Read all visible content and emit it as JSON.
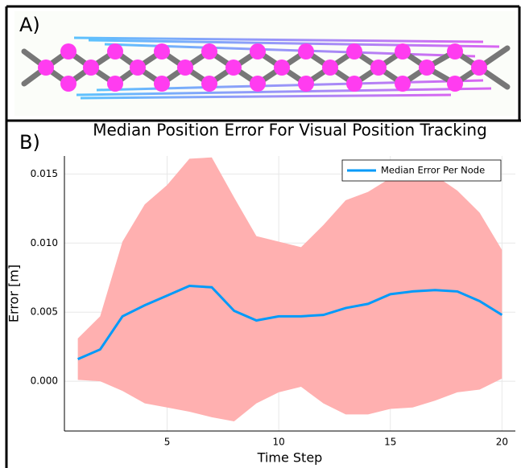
{
  "panels": {
    "a": "A)",
    "b": "B)"
  },
  "chart_data": {
    "type": "line",
    "title": "Median Position Error For Visual Position Tracking",
    "x_label": "Time Step",
    "y_label": "Error [m]",
    "x": [
      1,
      2,
      3,
      4,
      5,
      6,
      7,
      8,
      9,
      10,
      11,
      12,
      13,
      14,
      15,
      16,
      17,
      18,
      19,
      20
    ],
    "series": [
      {
        "name": "Median Error Per Node",
        "color": "#009af9",
        "values": [
          0.0016,
          0.0023,
          0.0047,
          0.0055,
          0.0062,
          0.0069,
          0.0068,
          0.0051,
          0.0044,
          0.0047,
          0.0047,
          0.0048,
          0.0053,
          0.0056,
          0.0063,
          0.0065,
          0.0066,
          0.0065,
          0.0058,
          0.0048
        ]
      }
    ],
    "band": {
      "color": "#ffb0b0",
      "upper": [
        0.0031,
        0.0047,
        0.0101,
        0.0128,
        0.0142,
        0.0161,
        0.0162,
        0.0133,
        0.0105,
        0.0101,
        0.0097,
        0.0113,
        0.0131,
        0.0137,
        0.0147,
        0.0151,
        0.0149,
        0.0138,
        0.0122,
        0.0095
      ],
      "lower": [
        0.0001,
        0.0,
        -0.0007,
        -0.0016,
        -0.0019,
        -0.0022,
        -0.0026,
        -0.0029,
        -0.0016,
        -0.0008,
        -0.0004,
        -0.0016,
        -0.0024,
        -0.0024,
        -0.002,
        -0.0019,
        -0.0014,
        -0.0008,
        -0.0006,
        0.0002
      ]
    },
    "xlim": [
      0.4,
      20.6
    ],
    "ylim": [
      -0.0036,
      0.0163
    ],
    "xticks": [
      5,
      10,
      15,
      20
    ],
    "yticks": [
      {
        "value": 0,
        "label": "0.000"
      },
      {
        "value": 0.005,
        "label": "0.005"
      },
      {
        "value": 0.01,
        "label": "0.010"
      },
      {
        "value": 0.015,
        "label": "0.015"
      }
    ],
    "grid": true,
    "legend": "top-right"
  }
}
